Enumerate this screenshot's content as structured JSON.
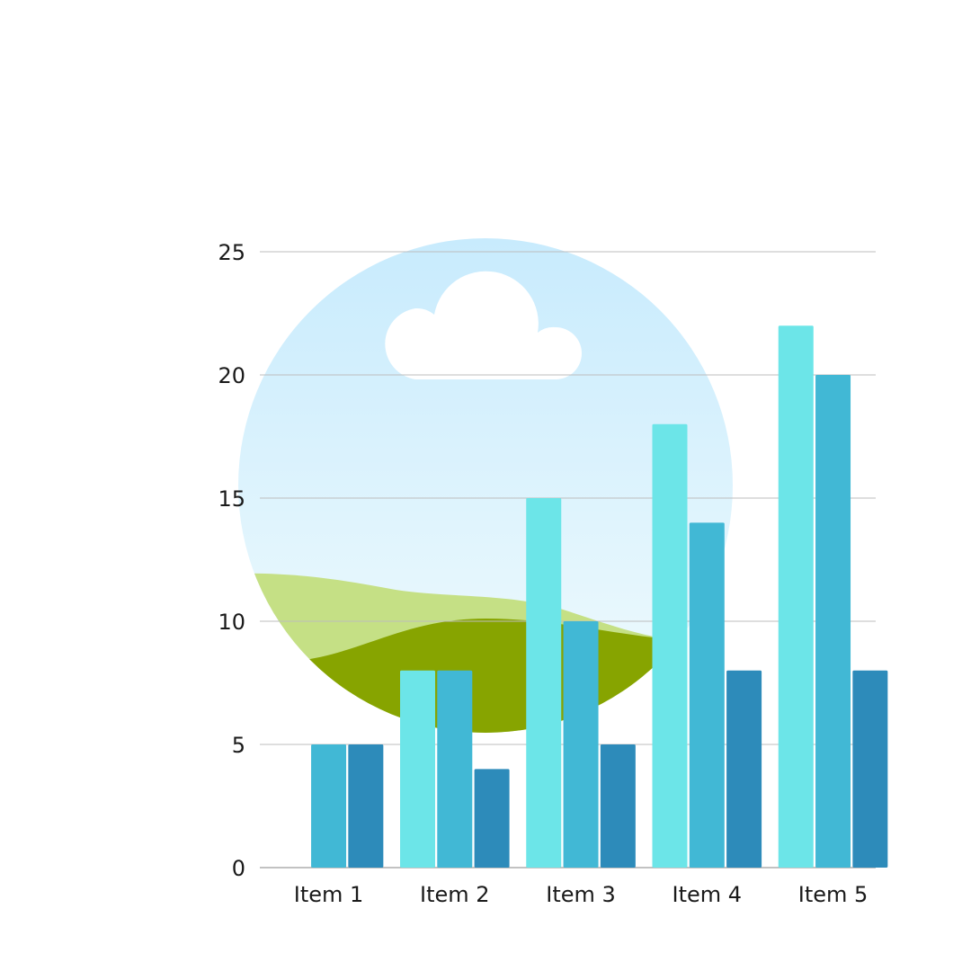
{
  "chart_data": {
    "type": "bar",
    "title": "",
    "xlabel": "",
    "ylabel": "",
    "ylim": [
      0,
      25
    ],
    "yticks": [
      0,
      5,
      10,
      15,
      20,
      25
    ],
    "grid": true,
    "legend": "none",
    "categories": [
      "Item 1",
      "Item 2",
      "Item 3",
      "Item 4",
      "Item 5"
    ],
    "series": [
      {
        "color": "#6ce5e8",
        "values": [
          0,
          8,
          15,
          18,
          22
        ]
      },
      {
        "color": "#41b8d5",
        "values": [
          5,
          8,
          10,
          14,
          20
        ]
      },
      {
        "color": "#2d8bba",
        "values": [
          5,
          4,
          5,
          8,
          8
        ]
      }
    ],
    "background_illustration": {
      "sky_top": "#c8ebfd",
      "sky_bottom": "#f1fbfd",
      "cloud": "#ffffff",
      "light_hill": "#c5e085",
      "dark_hill": "#87a400"
    }
  }
}
